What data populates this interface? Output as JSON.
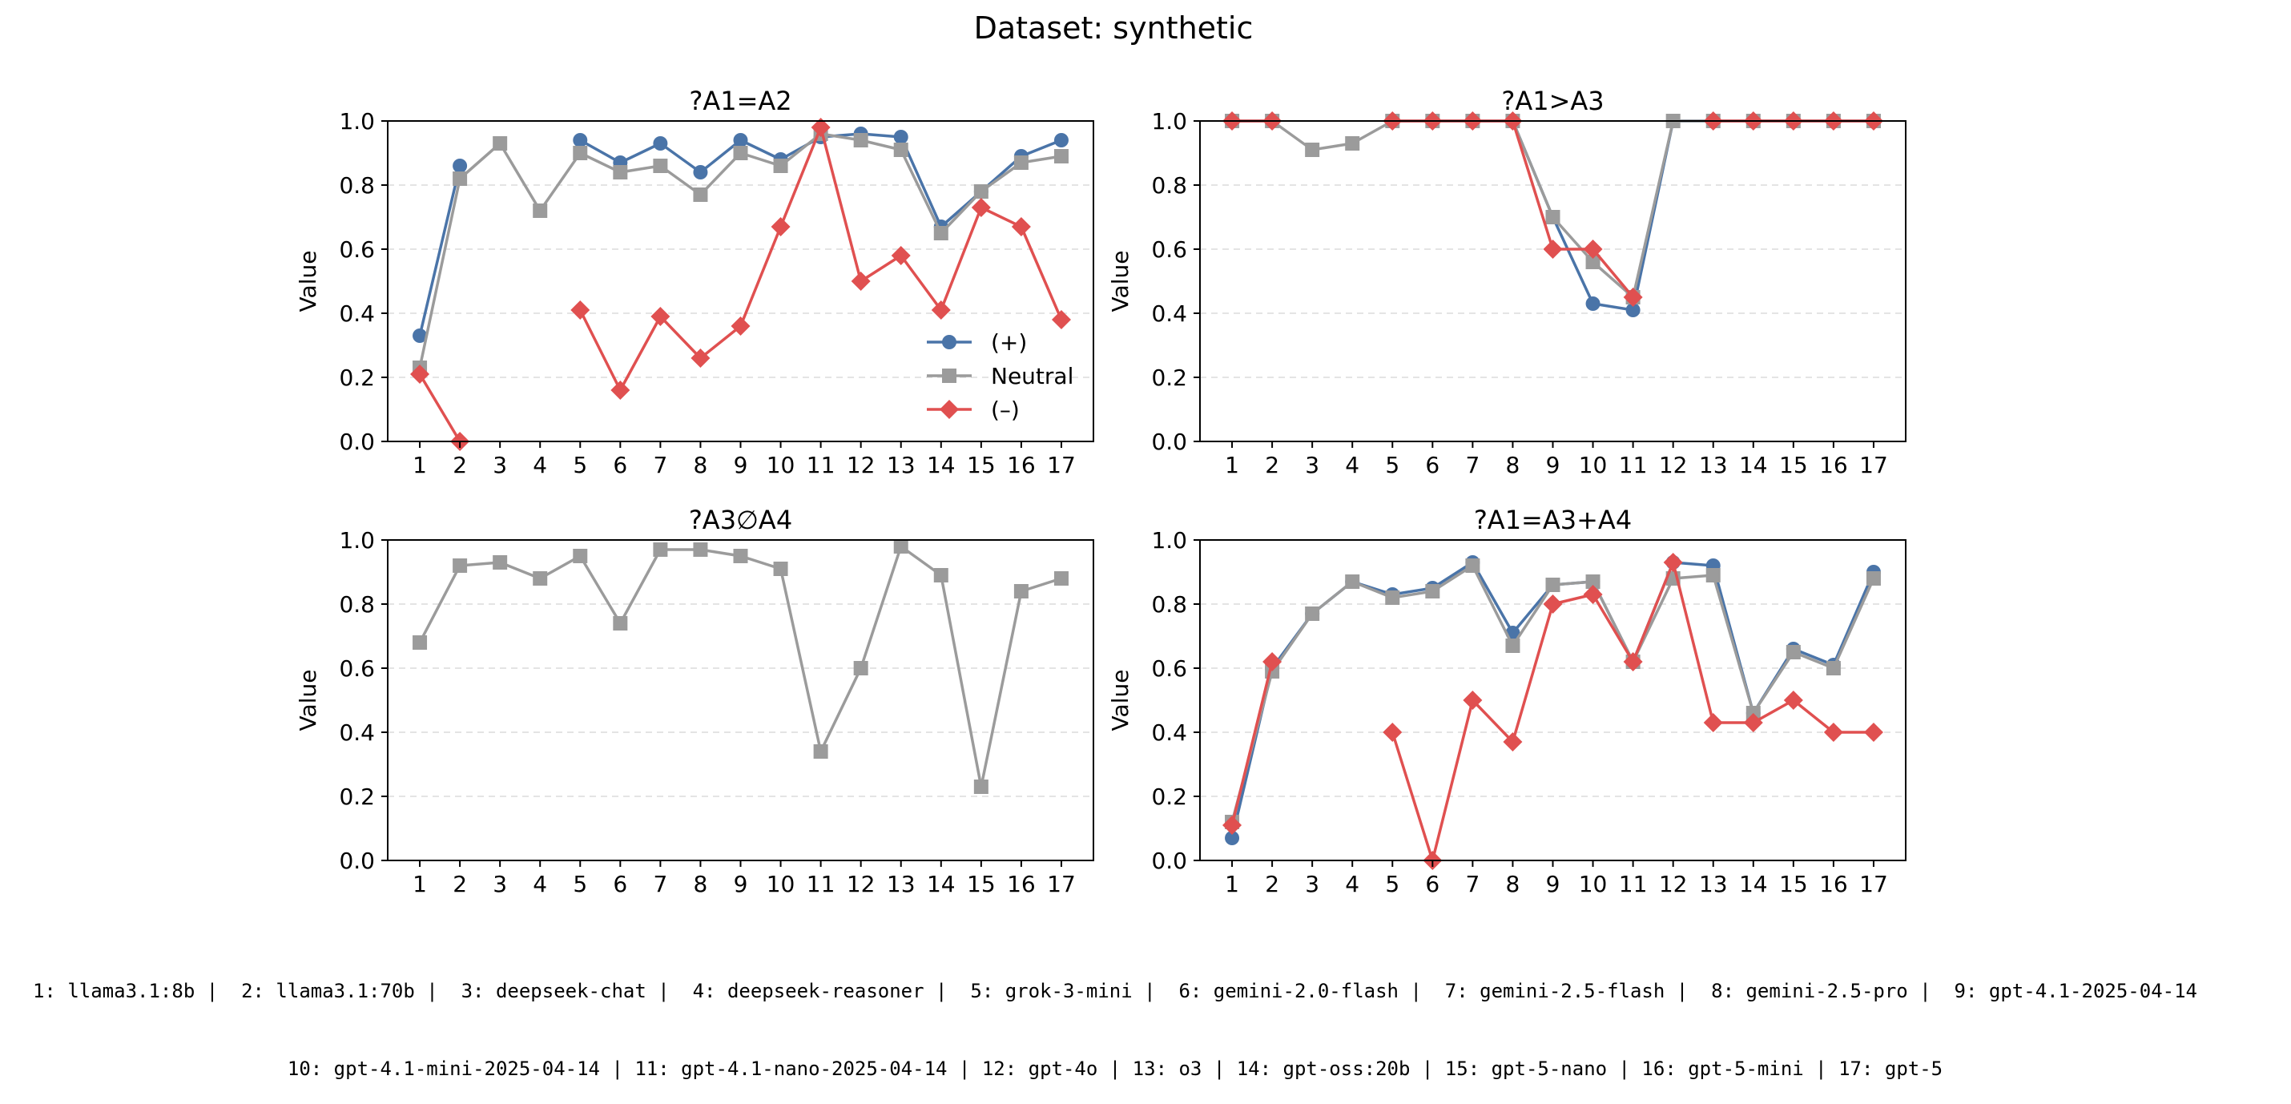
{
  "figure_title": "Dataset: synthetic",
  "colors": {
    "plus": "#4a74a8",
    "neutral": "#9b9b9b",
    "minus": "#e05050"
  },
  "legend_labels": {
    "plus": "(+)",
    "neutral": "Neutral",
    "minus": "(–)"
  },
  "model_key_lines": [
    "1: llama3.1:8b |  2: llama3.1:70b |  3: deepseek-chat |  4: deepseek-reasoner |  5: grok-3-mini |  6: gemini-2.0-flash |  7: gemini-2.5-flash |  8: gemini-2.5-pro |  9: gpt-4.1-2025-04-14",
    "10: gpt-4.1-mini-2025-04-14 | 11: gpt-4.1-nano-2025-04-14 | 12: gpt-4o | 13: o3 | 14: gpt-oss:20b | 15: gpt-5-nano | 16: gpt-5-mini | 17: gpt-5"
  ],
  "chart_data": [
    {
      "type": "line",
      "title": "?A1=A2",
      "xlabel": "",
      "ylabel": "Value",
      "x": [
        1,
        2,
        3,
        4,
        5,
        6,
        7,
        8,
        9,
        10,
        11,
        12,
        13,
        14,
        15,
        16,
        17
      ],
      "ylim": [
        0,
        1
      ],
      "yticks": [
        0.0,
        0.2,
        0.4,
        0.6,
        0.8,
        1.0
      ],
      "grid": "y-dashed",
      "legend": "lower-right",
      "series": [
        {
          "key": "plus",
          "name": "(+)",
          "marker": "circle",
          "values": [
            0.33,
            0.86,
            null,
            null,
            0.94,
            0.87,
            0.93,
            0.84,
            0.94,
            0.88,
            0.95,
            0.96,
            0.95,
            0.67,
            0.78,
            0.89,
            0.94
          ]
        },
        {
          "key": "neutral",
          "name": "Neutral",
          "marker": "square",
          "values": [
            0.23,
            0.82,
            0.93,
            0.72,
            0.9,
            0.84,
            0.86,
            0.77,
            0.9,
            0.86,
            0.96,
            0.94,
            0.91,
            0.65,
            0.78,
            0.87,
            0.89
          ]
        },
        {
          "key": "minus",
          "name": "(–)",
          "marker": "diamond",
          "values": [
            0.21,
            0.0,
            null,
            null,
            0.41,
            0.16,
            0.39,
            0.26,
            0.36,
            0.67,
            0.98,
            0.5,
            0.58,
            0.41,
            0.73,
            0.67,
            0.38
          ]
        }
      ]
    },
    {
      "type": "line",
      "title": "?A1>A3",
      "xlabel": "",
      "ylabel": "Value",
      "x": [
        1,
        2,
        3,
        4,
        5,
        6,
        7,
        8,
        9,
        10,
        11,
        12,
        13,
        14,
        15,
        16,
        17
      ],
      "ylim": [
        0,
        1
      ],
      "yticks": [
        0.0,
        0.2,
        0.4,
        0.6,
        0.8,
        1.0
      ],
      "grid": "y-dashed",
      "series": [
        {
          "key": "plus",
          "name": "(+)",
          "marker": "circle",
          "values": [
            1.0,
            1.0,
            null,
            null,
            1.0,
            1.0,
            1.0,
            1.0,
            0.7,
            0.43,
            0.41,
            1.0,
            1.0,
            1.0,
            1.0,
            1.0,
            1.0
          ]
        },
        {
          "key": "neutral",
          "name": "Neutral",
          "marker": "square",
          "values": [
            1.0,
            1.0,
            0.91,
            0.93,
            1.0,
            1.0,
            1.0,
            1.0,
            0.7,
            0.56,
            0.45,
            1.0,
            1.0,
            1.0,
            1.0,
            1.0,
            1.0
          ]
        },
        {
          "key": "minus",
          "name": "(–)",
          "marker": "diamond",
          "values": [
            1.0,
            1.0,
            null,
            null,
            1.0,
            1.0,
            1.0,
            1.0,
            0.6,
            0.6,
            0.45,
            null,
            1.0,
            1.0,
            1.0,
            1.0,
            1.0
          ]
        }
      ]
    },
    {
      "type": "line",
      "title": "?A3∅A4",
      "xlabel": "",
      "ylabel": "Value",
      "x": [
        1,
        2,
        3,
        4,
        5,
        6,
        7,
        8,
        9,
        10,
        11,
        12,
        13,
        14,
        15,
        16,
        17
      ],
      "ylim": [
        0,
        1
      ],
      "yticks": [
        0.0,
        0.2,
        0.4,
        0.6,
        0.8,
        1.0
      ],
      "grid": "y-dashed",
      "series": [
        {
          "key": "neutral",
          "name": "Neutral",
          "marker": "square",
          "values": [
            0.68,
            0.92,
            0.93,
            0.88,
            0.95,
            0.74,
            0.97,
            0.97,
            0.95,
            0.91,
            0.34,
            0.6,
            0.98,
            0.89,
            0.23,
            0.84,
            0.88
          ]
        }
      ]
    },
    {
      "type": "line",
      "title": "?A1=A3+A4",
      "xlabel": "",
      "ylabel": "Value",
      "x": [
        1,
        2,
        3,
        4,
        5,
        6,
        7,
        8,
        9,
        10,
        11,
        12,
        13,
        14,
        15,
        16,
        17
      ],
      "ylim": [
        0,
        1
      ],
      "yticks": [
        0.0,
        0.2,
        0.4,
        0.6,
        0.8,
        1.0
      ],
      "grid": "y-dashed",
      "series": [
        {
          "key": "plus",
          "name": "(+)",
          "marker": "circle",
          "values": [
            0.07,
            0.6,
            0.77,
            0.87,
            0.83,
            0.85,
            0.93,
            0.71,
            0.86,
            0.87,
            0.62,
            0.93,
            0.92,
            0.46,
            0.66,
            0.61,
            0.9
          ]
        },
        {
          "key": "neutral",
          "name": "Neutral",
          "marker": "square",
          "values": [
            0.12,
            0.59,
            0.77,
            0.87,
            0.82,
            0.84,
            0.92,
            0.67,
            0.86,
            0.87,
            0.62,
            0.88,
            0.89,
            0.46,
            0.65,
            0.6,
            0.88
          ]
        },
        {
          "key": "minus",
          "name": "(–)",
          "marker": "diamond",
          "values": [
            0.11,
            0.62,
            null,
            null,
            0.4,
            0.0,
            0.5,
            0.37,
            0.8,
            0.83,
            0.62,
            0.93,
            0.43,
            0.43,
            0.5,
            0.4,
            0.4
          ]
        }
      ]
    }
  ]
}
